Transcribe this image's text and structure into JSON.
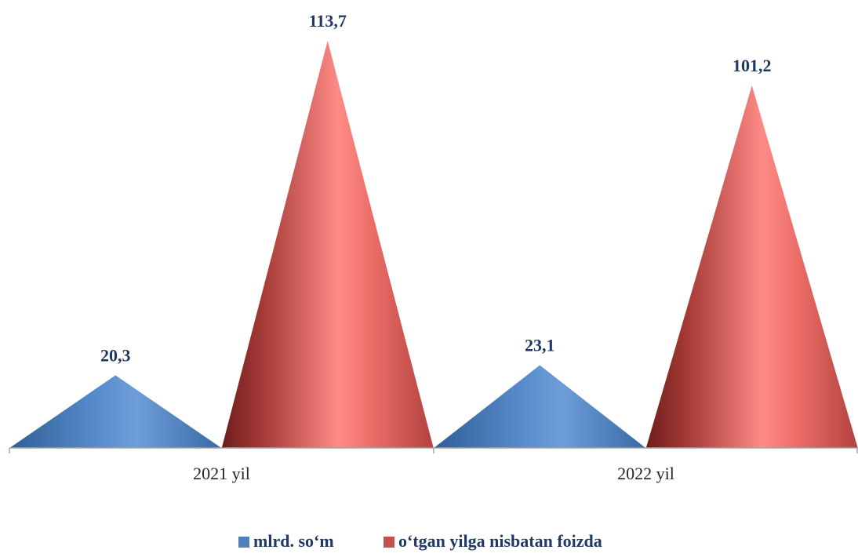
{
  "chart_data": {
    "type": "bar",
    "bar_shape": "cone",
    "categories": [
      "2021 yil",
      "2022 yil"
    ],
    "series": [
      {
        "name": "mlrd. so‘m",
        "values": [
          20.3,
          23.1
        ],
        "labels": [
          "20,3",
          "23,1"
        ],
        "color": "#4f81bd"
      },
      {
        "name": "o‘tgan yilga nisbatan foizda",
        "values": [
          113.7,
          101.2
        ],
        "labels": [
          "113,7",
          "101,2"
        ],
        "color": "#c0504d"
      }
    ],
    "ylim": [
      0,
      113.7
    ],
    "grid": false,
    "legend": "bottom",
    "title": "",
    "xlabel": "",
    "ylabel": ""
  }
}
